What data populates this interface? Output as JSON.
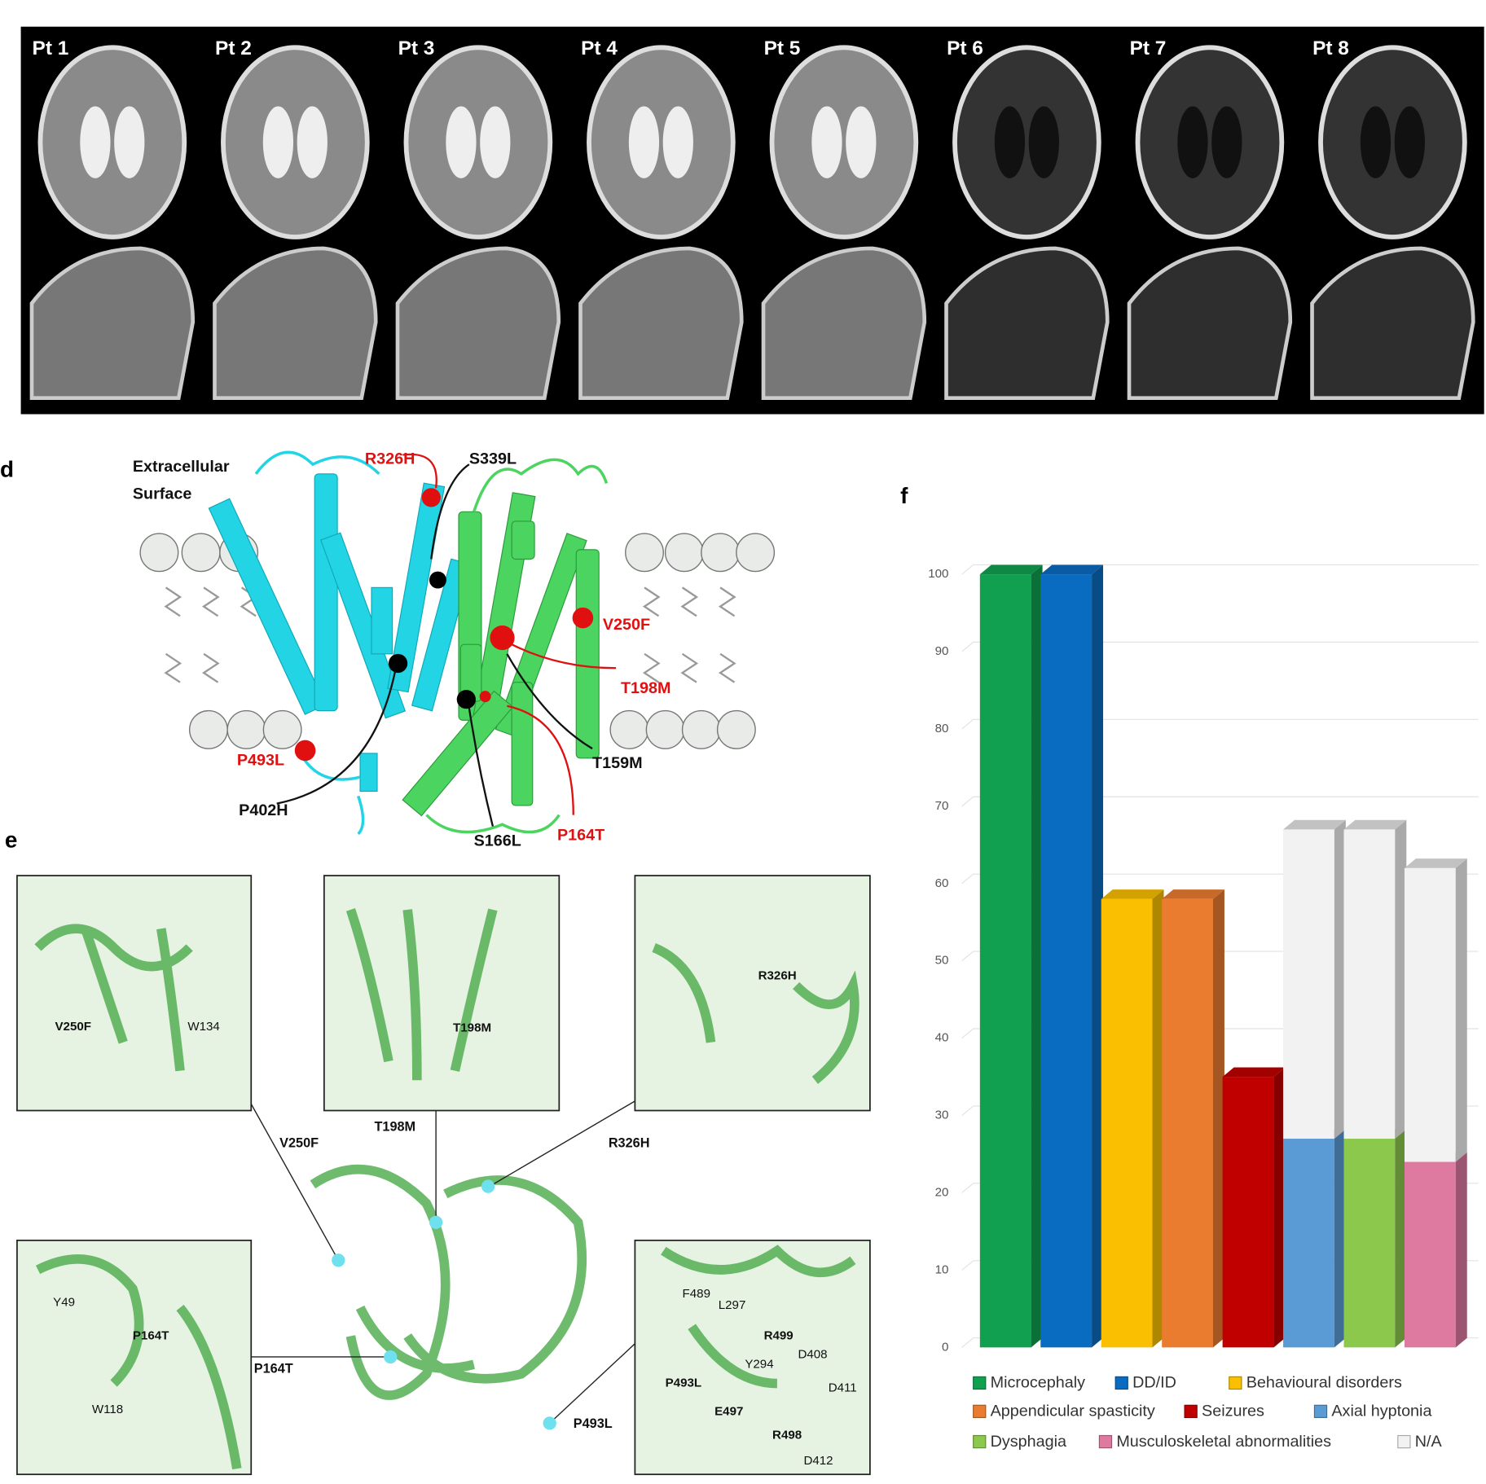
{
  "panel_labels": [
    "d",
    "e",
    "f"
  ],
  "mri": {
    "patients": [
      "Pt 1",
      "Pt 2",
      "Pt 3",
      "Pt 4",
      "Pt 5",
      "Pt 6",
      "Pt 7",
      "Pt 8"
    ]
  },
  "panel_d": {
    "surface_label": [
      "Extracellular",
      "Surface"
    ],
    "mutations": [
      "R326H",
      "S339L",
      "V250F",
      "T198M",
      "T159M",
      "P493L",
      "P402H",
      "S166L",
      "P164T"
    ]
  },
  "panel_e": {
    "callouts": [
      "V250F",
      "T198M",
      "R326H",
      "P164T",
      "P493L"
    ],
    "insets": [
      [
        "V250F",
        "W134"
      ],
      [
        "T198M"
      ],
      [
        "R326H"
      ],
      [
        "Y49",
        "P164T",
        "W118"
      ],
      [
        "F489",
        "L297",
        "R499",
        "D408",
        "Y294",
        "P493L",
        "E497",
        "R498",
        "D411",
        "D412"
      ]
    ]
  },
  "chart_data": {
    "type": "bar",
    "stacked": true,
    "grid": true,
    "categories": [
      null,
      null,
      null,
      null,
      null,
      null,
      null,
      null
    ],
    "ylim": [
      0,
      100
    ],
    "yticks": [
      0,
      10,
      20,
      30,
      40,
      50,
      60,
      70,
      80,
      90,
      100
    ],
    "series": [
      {
        "name": "Microcephaly",
        "color": "#10a050",
        "values": [
          100,
          null,
          null,
          null,
          null,
          null,
          null,
          null
        ]
      },
      {
        "name": "DD/ID",
        "color": "#0a6cc0",
        "values": [
          null,
          100,
          null,
          null,
          null,
          null,
          null,
          null
        ]
      },
      {
        "name": "Behavioural disorders",
        "color": "#f9bf00",
        "values": [
          null,
          null,
          58,
          null,
          null,
          null,
          null,
          null
        ]
      },
      {
        "name": "Appendicular spasticity",
        "color": "#ea7c30",
        "values": [
          null,
          null,
          null,
          58,
          null,
          null,
          null,
          null
        ]
      },
      {
        "name": "Seizures",
        "color": "#c00000",
        "values": [
          null,
          null,
          null,
          null,
          35,
          null,
          null,
          null
        ]
      },
      {
        "name": "Axial hyptonia",
        "color": "#5b9bd5",
        "values": [
          null,
          null,
          null,
          null,
          null,
          27,
          null,
          null
        ]
      },
      {
        "name": "Dysphagia",
        "color": "#8cc84b",
        "values": [
          null,
          null,
          null,
          null,
          null,
          null,
          27,
          null
        ]
      },
      {
        "name": "Musculoskeletal abnormalities",
        "color": "#de7aa0",
        "values": [
          null,
          null,
          null,
          null,
          null,
          null,
          null,
          24
        ]
      },
      {
        "name": "N/A",
        "color": "#f2f2f2",
        "values": [
          null,
          null,
          null,
          null,
          null,
          40,
          40,
          38
        ]
      }
    ]
  }
}
